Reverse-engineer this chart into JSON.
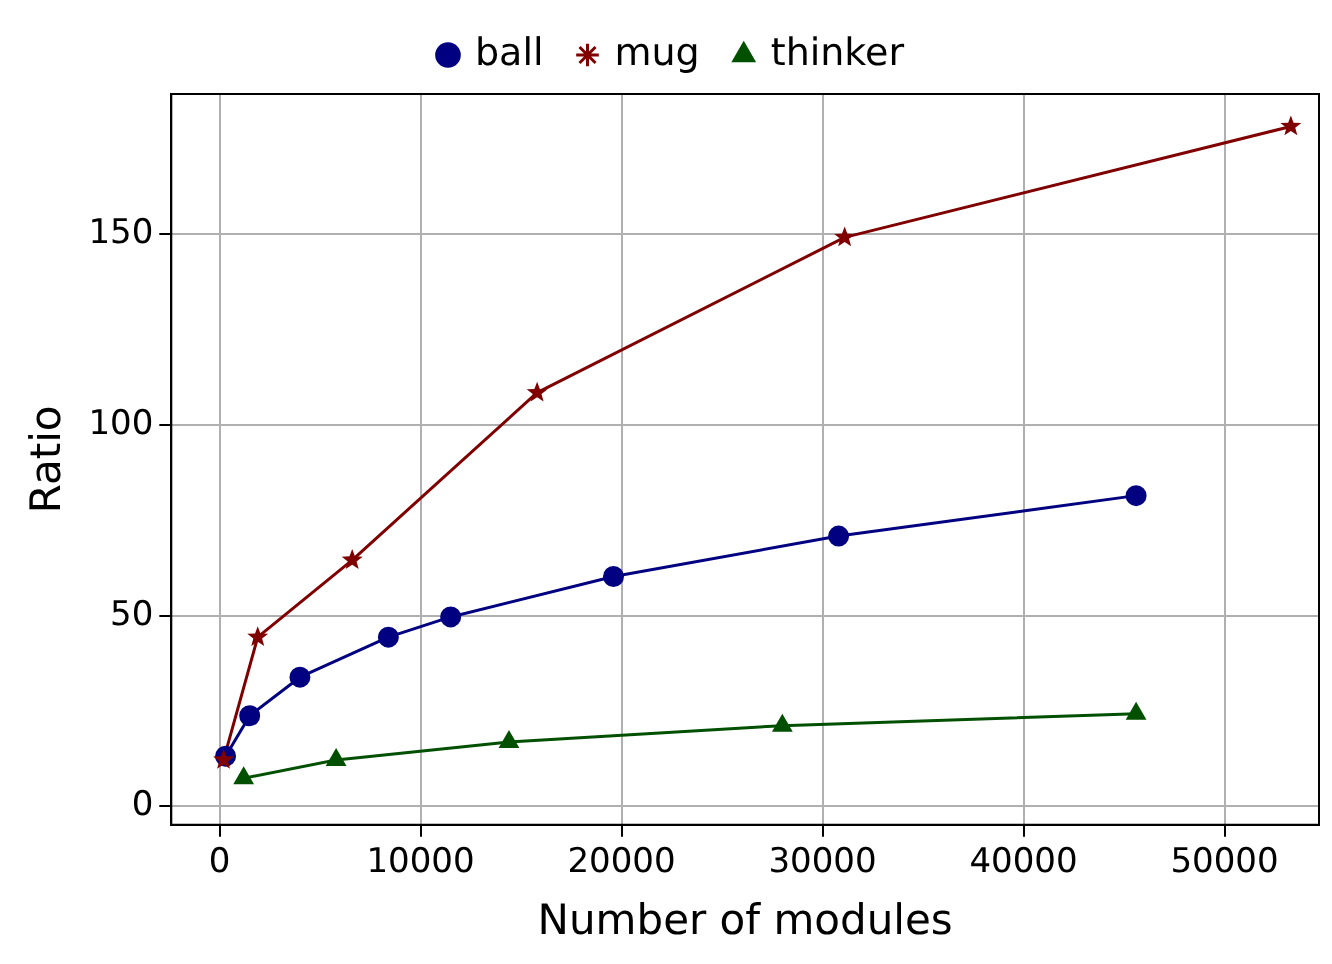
{
  "chart_data": {
    "type": "line",
    "xlabel": "Number of modules",
    "ylabel": "Ratio",
    "xlim": [
      -2400,
      54700
    ],
    "xticks": [
      0,
      10000,
      20000,
      30000,
      40000,
      50000
    ],
    "ylim": [
      -4.8,
      186.8
    ],
    "yticks": [
      0,
      50,
      100,
      150
    ],
    "grid": true,
    "legend": "top",
    "line_style": "solid",
    "series": [
      {
        "name": "ball",
        "color": "#000080",
        "marker": "circle",
        "x": [
          300,
          1500,
          4000,
          8400,
          11500,
          19600,
          30800,
          45600
        ],
        "values": [
          13.2,
          23.8,
          33.9,
          44.4,
          49.7,
          60.3,
          70.9,
          81.5
        ]
      },
      {
        "name": "mug",
        "color": "#800000",
        "marker": "star",
        "x": [
          200,
          1900,
          6600,
          15800,
          31100,
          53300
        ],
        "values": [
          12.2,
          44.4,
          64.6,
          108.5,
          149.2,
          178.3
        ]
      },
      {
        "name": "thinker",
        "color": "#005000",
        "marker": "triangle",
        "x": [
          1200,
          5800,
          14400,
          28000,
          45600
        ],
        "values": [
          7.4,
          12.2,
          16.9,
          21.2,
          24.3
        ]
      }
    ]
  }
}
